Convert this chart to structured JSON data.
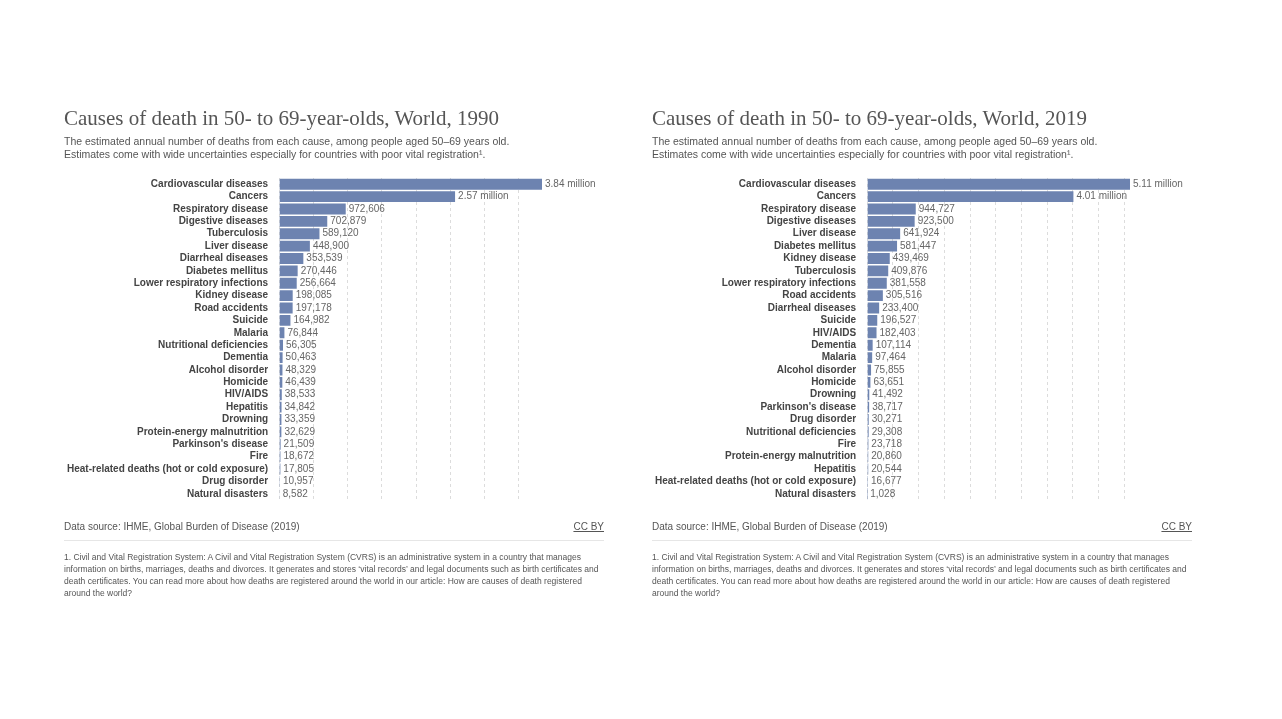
{
  "chart_data": [
    {
      "type": "bar",
      "orientation": "horizontal",
      "title": "Causes of death in 50- to 69-year-olds, World, 1990",
      "subtitle": "The estimated annual number of deaths from each cause, among people aged 50–69 years old. Estimates come with wide uncertainties especially for countries with poor vital registration¹.",
      "categories": [
        "Cardiovascular diseases",
        "Cancers",
        "Respiratory disease",
        "Digestive diseases",
        "Tuberculosis",
        "Liver disease",
        "Diarrheal diseases",
        "Diabetes mellitus",
        "Lower respiratory infections",
        "Kidney disease",
        "Road accidents",
        "Suicide",
        "Malaria",
        "Nutritional deficiencies",
        "Dementia",
        "Alcohol disorder",
        "Homicide",
        "HIV/AIDS",
        "Hepatitis",
        "Drowning",
        "Protein-energy malnutrition",
        "Parkinson's disease",
        "Fire",
        "Heat-related deaths (hot or cold exposure)",
        "Drug disorder",
        "Natural disasters"
      ],
      "values": [
        3840000,
        2570000,
        972606,
        702879,
        589120,
        448900,
        353539,
        270446,
        256664,
        198085,
        197178,
        164982,
        76844,
        56305,
        50463,
        48329,
        46439,
        38533,
        34842,
        33359,
        32629,
        21509,
        18672,
        17805,
        10957,
        8582
      ],
      "value_labels": [
        "3.84 million",
        "2.57 million",
        "972,606",
        "702,879",
        "589,120",
        "448,900",
        "353,539",
        "270,446",
        "256,664",
        "198,085",
        "197,178",
        "164,982",
        "76,844",
        "56,305",
        "50,463",
        "48,329",
        "46,439",
        "38,533",
        "34,842",
        "33,359",
        "32,629",
        "21,509",
        "18,672",
        "17,805",
        "10,957",
        "8,582"
      ],
      "color": "#6d83b0",
      "xlim": [
        0,
        3840000
      ],
      "xticks": [
        {
          "value": 0,
          "label": null
        },
        {
          "value": 500000,
          "label": null
        },
        {
          "value": 1000000,
          "label": null
        },
        {
          "value": 1500000,
          "label": null
        },
        {
          "value": 2000000,
          "label": null
        },
        {
          "value": 2500000,
          "label": null
        },
        {
          "value": 3000000,
          "label": null
        },
        {
          "value": 3500000,
          "label": null
        }
      ],
      "grid": "x",
      "tick_labels": "y",
      "annotations": [
        "Data source: IHME, Global Burden of Disease (2019)",
        "CC BY",
        "1. Civil and Vital Registration System: A Civil and Vital Registration System (CVRS) is an administrative system in a country that manages information on births, marriages, deaths and divorces. It generates and stores ‘vital records’ and legal documents such as birth certificates and death certificates. You can read more about how deaths are registered around the world in our article: How are causes of death registered around the world?"
      ]
    },
    {
      "type": "bar",
      "orientation": "horizontal",
      "title": "Causes of death in 50- to 69-year-olds, World, 2019",
      "subtitle": "The estimated annual number of deaths from each cause, among people aged 50–69 years old. Estimates come with wide uncertainties especially for countries with poor vital registration¹.",
      "categories": [
        "Cardiovascular diseases",
        "Cancers",
        "Respiratory disease",
        "Digestive diseases",
        "Liver disease",
        "Diabetes mellitus",
        "Kidney disease",
        "Tuberculosis",
        "Lower respiratory infections",
        "Road accidents",
        "Diarrheal diseases",
        "Suicide",
        "HIV/AIDS",
        "Dementia",
        "Malaria",
        "Alcohol disorder",
        "Homicide",
        "Drowning",
        "Parkinson's disease",
        "Drug disorder",
        "Nutritional deficiencies",
        "Fire",
        "Protein-energy malnutrition",
        "Hepatitis",
        "Heat-related deaths (hot or cold exposure)",
        "Natural disasters"
      ],
      "values": [
        5110000,
        4010000,
        944727,
        923500,
        641924,
        581447,
        439469,
        409876,
        381558,
        305516,
        233400,
        196527,
        182403,
        107114,
        97464,
        75855,
        63651,
        41492,
        38717,
        30271,
        29308,
        23718,
        20860,
        20544,
        16677,
        1028
      ],
      "value_labels": [
        "5.11 million",
        "4.01 million",
        "944,727",
        "923,500",
        "641,924",
        "581,447",
        "439,469",
        "409,876",
        "381,558",
        "305,516",
        "233,400",
        "196,527",
        "182,403",
        "107,114",
        "97,464",
        "75,855",
        "63,651",
        "41,492",
        "38,717",
        "30,271",
        "29,308",
        "23,718",
        "20,860",
        "20,544",
        "16,677",
        "1,028"
      ],
      "color": "#6d83b0",
      "xlim": [
        0,
        5110000
      ],
      "xticks": [
        {
          "value": 0,
          "label": null
        },
        {
          "value": 500000,
          "label": null
        },
        {
          "value": 1000000,
          "label": null
        },
        {
          "value": 1500000,
          "label": null
        },
        {
          "value": 2000000,
          "label": null
        },
        {
          "value": 2500000,
          "label": null
        },
        {
          "value": 3000000,
          "label": null
        },
        {
          "value": 3500000,
          "label": null
        },
        {
          "value": 4000000,
          "label": null
        },
        {
          "value": 4500000,
          "label": null
        },
        {
          "value": 5000000,
          "label": null
        }
      ],
      "grid": "x",
      "tick_labels": "y",
      "annotations": [
        "Data source: IHME, Global Burden of Disease (2019)",
        "CC BY",
        "1. Civil and Vital Registration System: A Civil and Vital Registration System (CVRS) is an administrative system in a country that manages information on births, marriages, deaths and divorces. It generates and stores ‘vital records’ and legal documents such as birth certificates and death certificates. You can read more about how deaths are registered around the world in our article: How are causes of death registered around the world?"
      ]
    }
  ]
}
